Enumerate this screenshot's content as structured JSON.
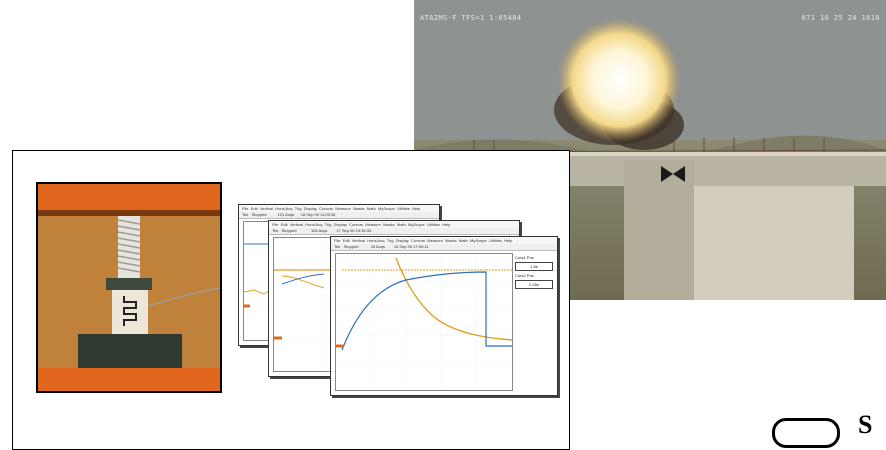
{
  "blast_photo": {
    "stamp_left": "ATA2MS-F TFS=1 1:05484",
    "stamp_right": "071 16 25 24 1610"
  },
  "scopes": [
    {
      "menu": [
        "File",
        "Edit",
        "Vertical",
        "Horiz/Acq",
        "Trig",
        "Display",
        "Cursors",
        "Measure",
        "Masks",
        "Math",
        "MyScope",
        "Utilities",
        "Help"
      ],
      "status_left": "Tek",
      "status_mid": "Stopped",
      "status_right": "121 Acqs",
      "timestamp": "18 Sep 09 11:09:35"
    },
    {
      "menu": [
        "File",
        "Edit",
        "Vertical",
        "Horiz/Acq",
        "Trig",
        "Display",
        "Cursors",
        "Measure",
        "Masks",
        "Math",
        "MyScope",
        "Utilities",
        "Help"
      ],
      "status_left": "Tek",
      "status_mid": "Stopped",
      "status_right": "106 Acqs",
      "timestamp": "17 Sep 09 15:16:33"
    },
    {
      "menu": [
        "File",
        "Edit",
        "Vertical",
        "Horiz/Acq",
        "Trig",
        "Display",
        "Cursors",
        "Measure",
        "Masks",
        "Math",
        "MyScope",
        "Utilities",
        "Help"
      ],
      "status_left": "Tek",
      "status_mid": "Stopped",
      "status_right": "16 Acqs",
      "timestamp": "16 Sep 09 17:59:11",
      "side_panel": {
        "cursor1_label": "Curs1 Pos",
        "cursor1_value": "1.8s",
        "cursor2_label": "Curs2 Pos",
        "cursor2_value": "2.26s"
      }
    }
  ],
  "logo": {
    "letter": "S"
  }
}
